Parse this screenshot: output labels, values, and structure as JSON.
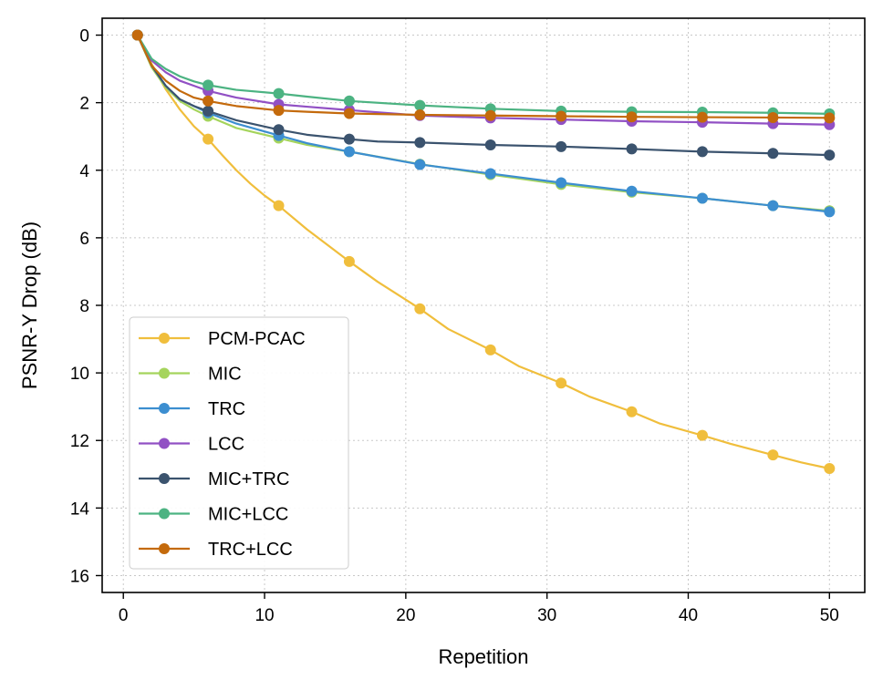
{
  "chart_data": {
    "type": "line",
    "xlabel": "Repetition",
    "ylabel": "PSNR-Y Drop (dB)",
    "xlim": [
      -1.5,
      52.5
    ],
    "ylim": [
      16.5,
      -0.5
    ],
    "y_inverted": true,
    "xticks": [
      0,
      10,
      20,
      30,
      40,
      50
    ],
    "yticks": [
      0,
      2,
      4,
      6,
      8,
      10,
      12,
      14,
      16
    ],
    "grid": true,
    "legend_position": "lower-left",
    "marker_x": [
      1,
      6,
      11,
      16,
      21,
      26,
      31,
      36,
      41,
      46,
      50
    ],
    "series": [
      {
        "name": "PCM-PCAC",
        "color": "#f0be3c",
        "line": [
          [
            1,
            0
          ],
          [
            2,
            0.85
          ],
          [
            3,
            1.6
          ],
          [
            4,
            2.2
          ],
          [
            5,
            2.7
          ],
          [
            6,
            3.08
          ],
          [
            7,
            3.55
          ],
          [
            8,
            4.0
          ],
          [
            9,
            4.4
          ],
          [
            10,
            4.75
          ],
          [
            11,
            5.05
          ],
          [
            13,
            5.75
          ],
          [
            16,
            6.7
          ],
          [
            18,
            7.3
          ],
          [
            21,
            8.1
          ],
          [
            23,
            8.7
          ],
          [
            26,
            9.32
          ],
          [
            28,
            9.8
          ],
          [
            31,
            10.3
          ],
          [
            33,
            10.7
          ],
          [
            36,
            11.15
          ],
          [
            38,
            11.5
          ],
          [
            41,
            11.85
          ],
          [
            43,
            12.1
          ],
          [
            46,
            12.43
          ],
          [
            48,
            12.65
          ],
          [
            50,
            12.83
          ]
        ],
        "values": [
          0,
          3.08,
          5.05,
          6.7,
          8.1,
          9.32,
          10.3,
          11.15,
          11.85,
          12.43,
          12.83
        ]
      },
      {
        "name": "MIC",
        "color": "#a5d45c",
        "line": [
          [
            1,
            0
          ],
          [
            2,
            0.95
          ],
          [
            3,
            1.55
          ],
          [
            4,
            1.95
          ],
          [
            5,
            2.2
          ],
          [
            6,
            2.4
          ],
          [
            8,
            2.75
          ],
          [
            11,
            3.05
          ],
          [
            13,
            3.25
          ],
          [
            16,
            3.45
          ],
          [
            21,
            3.82
          ],
          [
            26,
            4.13
          ],
          [
            31,
            4.42
          ],
          [
            36,
            4.65
          ],
          [
            41,
            4.83
          ],
          [
            46,
            5.05
          ],
          [
            50,
            5.2
          ]
        ],
        "values": [
          0,
          2.4,
          3.05,
          3.45,
          3.82,
          4.13,
          4.42,
          4.65,
          4.83,
          5.05,
          5.2
        ]
      },
      {
        "name": "TRC",
        "color": "#3c8ed0",
        "line": [
          [
            1,
            0
          ],
          [
            2,
            0.9
          ],
          [
            3,
            1.5
          ],
          [
            4,
            1.9
          ],
          [
            5,
            2.1
          ],
          [
            6,
            2.3
          ],
          [
            8,
            2.62
          ],
          [
            11,
            2.97
          ],
          [
            13,
            3.2
          ],
          [
            16,
            3.45
          ],
          [
            21,
            3.83
          ],
          [
            26,
            4.1
          ],
          [
            31,
            4.37
          ],
          [
            36,
            4.62
          ],
          [
            41,
            4.83
          ],
          [
            46,
            5.05
          ],
          [
            50,
            5.23
          ]
        ],
        "values": [
          0,
          2.3,
          2.97,
          3.45,
          3.83,
          4.1,
          4.37,
          4.62,
          4.83,
          5.05,
          5.23
        ]
      },
      {
        "name": "LCC",
        "color": "#9150c4",
        "line": [
          [
            1,
            0
          ],
          [
            2,
            0.75
          ],
          [
            3,
            1.1
          ],
          [
            4,
            1.35
          ],
          [
            5,
            1.5
          ],
          [
            6,
            1.65
          ],
          [
            8,
            1.85
          ],
          [
            11,
            2.05
          ],
          [
            13,
            2.12
          ],
          [
            16,
            2.22
          ],
          [
            21,
            2.38
          ],
          [
            26,
            2.45
          ],
          [
            31,
            2.5
          ],
          [
            36,
            2.55
          ],
          [
            41,
            2.58
          ],
          [
            46,
            2.62
          ],
          [
            50,
            2.65
          ]
        ],
        "values": [
          0,
          1.65,
          2.05,
          2.22,
          2.38,
          2.45,
          2.5,
          2.55,
          2.58,
          2.62,
          2.65
        ]
      },
      {
        "name": "MIC+TRC",
        "color": "#3b536e",
        "line": [
          [
            1,
            0
          ],
          [
            2,
            0.9
          ],
          [
            3,
            1.5
          ],
          [
            4,
            1.9
          ],
          [
            5,
            2.1
          ],
          [
            6,
            2.25
          ],
          [
            8,
            2.52
          ],
          [
            11,
            2.8
          ],
          [
            13,
            2.95
          ],
          [
            16,
            3.08
          ],
          [
            18,
            3.15
          ],
          [
            21,
            3.18
          ],
          [
            26,
            3.25
          ],
          [
            31,
            3.3
          ],
          [
            36,
            3.37
          ],
          [
            41,
            3.45
          ],
          [
            46,
            3.5
          ],
          [
            50,
            3.55
          ]
        ],
        "values": [
          0,
          2.25,
          2.8,
          3.08,
          3.18,
          3.25,
          3.3,
          3.37,
          3.45,
          3.5,
          3.55
        ]
      },
      {
        "name": "MIC+LCC",
        "color": "#4cb382",
        "line": [
          [
            1,
            0
          ],
          [
            2,
            0.7
          ],
          [
            3,
            1.0
          ],
          [
            4,
            1.22
          ],
          [
            5,
            1.37
          ],
          [
            6,
            1.48
          ],
          [
            8,
            1.62
          ],
          [
            11,
            1.73
          ],
          [
            13,
            1.82
          ],
          [
            16,
            1.95
          ],
          [
            21,
            2.08
          ],
          [
            26,
            2.18
          ],
          [
            31,
            2.25
          ],
          [
            36,
            2.27
          ],
          [
            41,
            2.28
          ],
          [
            46,
            2.3
          ],
          [
            50,
            2.33
          ]
        ],
        "values": [
          0,
          1.48,
          1.73,
          1.95,
          2.08,
          2.18,
          2.25,
          2.27,
          2.28,
          2.3,
          2.33
        ]
      },
      {
        "name": "TRC+LCC",
        "color": "#c46a0c",
        "line": [
          [
            1,
            0
          ],
          [
            2,
            0.9
          ],
          [
            3,
            1.35
          ],
          [
            4,
            1.65
          ],
          [
            5,
            1.85
          ],
          [
            6,
            1.95
          ],
          [
            8,
            2.1
          ],
          [
            11,
            2.23
          ],
          [
            13,
            2.27
          ],
          [
            16,
            2.32
          ],
          [
            21,
            2.36
          ],
          [
            26,
            2.38
          ],
          [
            31,
            2.4
          ],
          [
            36,
            2.42
          ],
          [
            41,
            2.43
          ],
          [
            46,
            2.44
          ],
          [
            50,
            2.45
          ]
        ],
        "values": [
          0,
          1.95,
          2.23,
          2.32,
          2.36,
          2.38,
          2.4,
          2.42,
          2.43,
          2.44,
          2.45
        ]
      }
    ]
  }
}
